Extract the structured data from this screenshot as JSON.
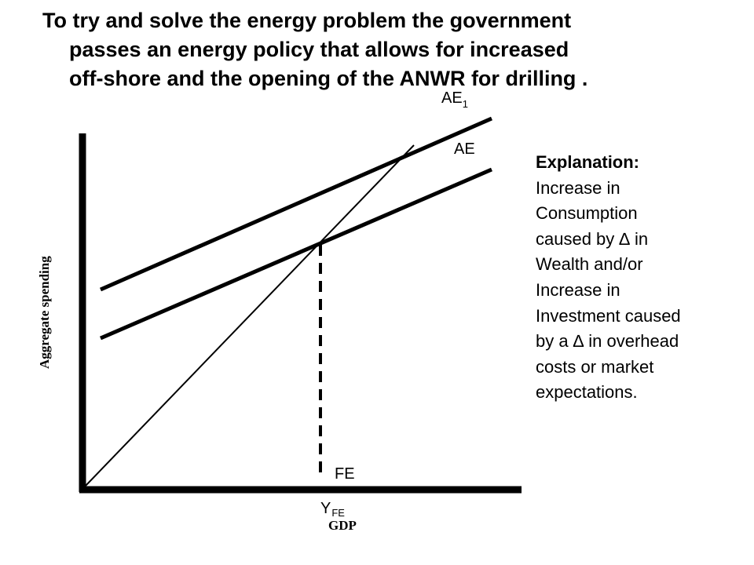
{
  "title": {
    "line1": "To try and solve the energy problem the government",
    "line2": "passes an energy policy that allows for increased",
    "line3": "off-shore and the opening of the ANWR for drilling ."
  },
  "diagram": {
    "y_axis_label": "Aggregate spending",
    "x_axis_label": "GDP",
    "curve_ae": "AE",
    "curve_ae1_main": "AE",
    "curve_ae1_sub": "1",
    "fe_label": "FE",
    "yfe_main": "Y",
    "yfe_sub": "FE"
  },
  "explanation": {
    "heading": "Explanation:",
    "text": "Increase in\nConsumption\ncaused by ∆ in\nWealth and/or\nIncrease in\nInvestment caused\nby a ∆ in overhead\ncosts or market\nexpectations."
  }
}
